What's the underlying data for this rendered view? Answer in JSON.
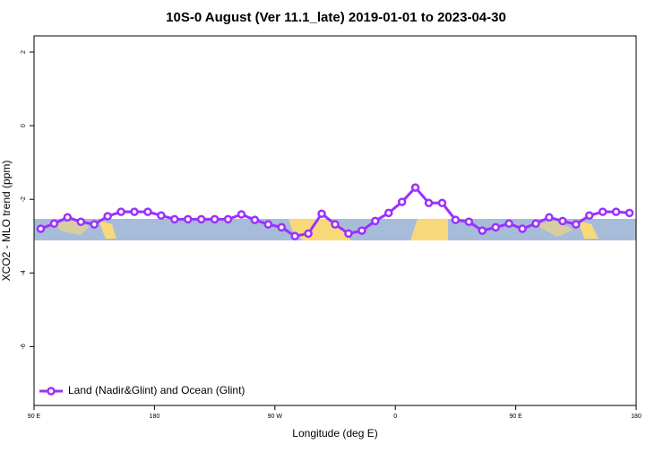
{
  "chart_data": {
    "type": "line",
    "title": "10S-0 August (Ver 11.1_late)   2019-01-01 to 2023-04-30",
    "x_label": "Longitude (deg E)",
    "y_label": "XCO2 - MLO trend (ppm)",
    "xlim": [
      90,
      540
    ],
    "xticks": [
      {
        "value": 90,
        "label": "90 E"
      },
      {
        "value": 180,
        "label": "180"
      },
      {
        "value": 270,
        "label": "90 W"
      },
      {
        "value": 360,
        "label": "0"
      },
      {
        "value": 450,
        "label": "90 E"
      },
      {
        "value": 540,
        "label": "180"
      }
    ],
    "ylim": [
      -7.6,
      2.44
    ],
    "yticks": [
      2,
      0,
      -2,
      -4,
      -6
    ],
    "legend": "bottom-left",
    "series": [
      {
        "name": "Land (Nadir&Glint) and Ocean (Glint)",
        "color": "#9b30ff",
        "x": [
          95,
          105,
          115,
          125,
          135,
          145,
          155,
          165,
          175,
          185,
          195,
          205,
          215,
          225,
          235,
          245,
          255,
          265,
          275,
          285,
          295,
          305,
          315,
          325,
          335,
          345,
          355,
          365,
          375,
          385,
          395,
          405,
          415,
          425,
          435,
          445,
          455,
          465,
          475,
          485,
          495,
          505,
          515,
          525,
          535
        ],
        "values": [
          -2.8,
          -2.66,
          -2.49,
          -2.61,
          -2.68,
          -2.46,
          -2.34,
          -2.34,
          -2.34,
          -2.44,
          -2.54,
          -2.54,
          -2.54,
          -2.54,
          -2.54,
          -2.41,
          -2.56,
          -2.68,
          -2.76,
          -3.0,
          -2.93,
          -2.39,
          -2.68,
          -2.93,
          -2.85,
          -2.59,
          -2.37,
          -2.07,
          -1.68,
          -2.1,
          -2.1,
          -2.56,
          -2.61,
          -2.85,
          -2.76,
          -2.66,
          -2.8,
          -2.66,
          -2.49,
          -2.59,
          -2.68,
          -2.44,
          -2.34,
          -2.34,
          -2.37
        ]
      }
    ]
  }
}
